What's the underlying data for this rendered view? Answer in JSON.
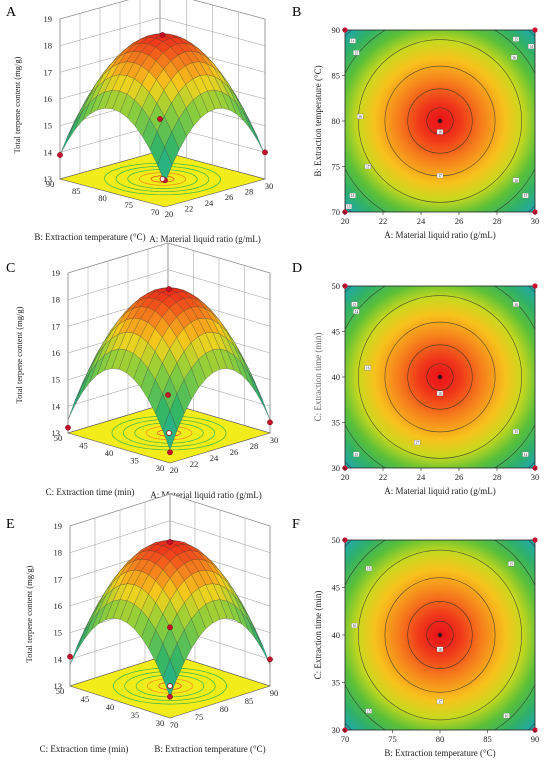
{
  "colors": {
    "surface_low": "#1aa8c8",
    "surface_mid": "#2fb56a",
    "surface_high": "#f5d21c",
    "surface_peak": "#ef2a1a",
    "floor": "#f2ec1a",
    "design_point": "#c8102e",
    "grid": "#555555"
  },
  "chart_data": [
    {
      "panel": "A",
      "type": "surface3d",
      "xlabel": "A: Material liquid ratio  (g/mL)",
      "ylabel": "B: Extraction temperature  (°C)",
      "zlabel": "Total terpene content    (mg/g)",
      "x_ticks": [
        "20",
        "22",
        "24",
        "26",
        "28",
        "30"
      ],
      "y_ticks": [
        "70",
        "75",
        "80",
        "85",
        "90"
      ],
      "z_ticks": [
        "13",
        "14",
        "15",
        "16",
        "17",
        "18",
        "19"
      ],
      "xlim": [
        20,
        30
      ],
      "ylim": [
        70,
        90
      ],
      "zlim": [
        13,
        19
      ],
      "x_opt": 25,
      "y_opt": 80,
      "z_max": 18.4,
      "z_corner": 13.9,
      "design_points": [
        [
          25,
          80,
          18.4
        ],
        [
          20,
          70,
          14.0
        ],
        [
          30,
          90,
          14.2
        ],
        [
          20,
          90,
          13.9
        ],
        [
          30,
          70,
          14.0
        ]
      ]
    },
    {
      "panel": "B",
      "type": "contour",
      "xlabel": "A: Material liquid ratio  (g/mL)",
      "ylabel": "B: Extraction temperature  (°C)",
      "x_ticks": [
        "20",
        "22",
        "24",
        "26",
        "28",
        "30"
      ],
      "y_ticks": [
        "70",
        "75",
        "80",
        "85",
        "90"
      ],
      "xlim": [
        20,
        30
      ],
      "ylim": [
        70,
        90
      ],
      "center": [
        25,
        80
      ],
      "contour_labels": [
        {
          "text": "14",
          "x": 20.4,
          "y": 88.8
        },
        {
          "text": "15",
          "x": 20.6,
          "y": 87.5
        },
        {
          "text": "16",
          "x": 20.8,
          "y": 80.5
        },
        {
          "text": "17",
          "x": 21.2,
          "y": 75.0
        },
        {
          "text": "14",
          "x": 20.4,
          "y": 71.8
        },
        {
          "text": "13",
          "x": 20.2,
          "y": 70.6
        },
        {
          "text": "18",
          "x": 25.0,
          "y": 78.8
        },
        {
          "text": "17",
          "x": 25.0,
          "y": 74.0
        },
        {
          "text": "15",
          "x": 29.0,
          "y": 89.0
        },
        {
          "text": "16",
          "x": 28.9,
          "y": 87.0
        },
        {
          "text": "14",
          "x": 29.8,
          "y": 88.2
        },
        {
          "text": "16",
          "x": 29.0,
          "y": 73.5
        },
        {
          "text": "15",
          "x": 29.5,
          "y": 71.8
        }
      ]
    },
    {
      "panel": "C",
      "type": "surface3d",
      "xlabel": "A: Material liquid ratio  (g/mL)",
      "ylabel": "C: Extraction time (min)",
      "zlabel": "Total terpene content    (mg/g)",
      "x_ticks": [
        "20",
        "22",
        "24",
        "26",
        "28",
        "30"
      ],
      "y_ticks": [
        "30",
        "35",
        "40",
        "45",
        "50"
      ],
      "z_ticks": [
        "13",
        "14",
        "15",
        "16",
        "17",
        "18",
        "19"
      ],
      "xlim": [
        20,
        30
      ],
      "ylim": [
        30,
        50
      ],
      "zlim": [
        13,
        19
      ],
      "x_opt": 25,
      "y_opt": 40,
      "z_max": 18.4,
      "z_corner": 13.5,
      "design_points": [
        [
          25,
          40,
          18.4
        ],
        [
          20,
          50,
          13.2
        ],
        [
          30,
          30,
          13.4
        ],
        [
          20,
          30,
          13.4
        ],
        [
          30,
          50,
          13.3
        ]
      ]
    },
    {
      "panel": "D",
      "type": "contour",
      "xlabel": "A: Material liquid ratio  (g/mL)",
      "ylabel": "C: Extraction time (min)",
      "x_ticks": [
        "20",
        "22",
        "24",
        "26",
        "28",
        "30"
      ],
      "y_ticks": [
        "30",
        "35",
        "40",
        "45",
        "50"
      ],
      "xlim": [
        20,
        30
      ],
      "ylim": [
        30,
        50
      ],
      "center": [
        25,
        40
      ],
      "contour_labels": [
        {
          "text": "13",
          "x": 20.5,
          "y": 48.0
        },
        {
          "text": "14",
          "x": 20.6,
          "y": 47.2
        },
        {
          "text": "16",
          "x": 21.2,
          "y": 41.0
        },
        {
          "text": "15",
          "x": 20.6,
          "y": 31.5
        },
        {
          "text": "17",
          "x": 23.8,
          "y": 32.8
        },
        {
          "text": "18",
          "x": 25.0,
          "y": 38.2
        },
        {
          "text": "16",
          "x": 29.0,
          "y": 48.0
        },
        {
          "text": "15",
          "x": 29.0,
          "y": 34.0
        },
        {
          "text": "14",
          "x": 29.5,
          "y": 31.5
        }
      ]
    },
    {
      "panel": "E",
      "type": "surface3d",
      "xlabel": "B: Extraction temperature  (°C)",
      "ylabel": "C: Extraction time (min)",
      "zlabel": "Total terpene content (mg/g)",
      "x_ticks": [
        "70",
        "75",
        "80",
        "85",
        "90"
      ],
      "y_ticks": [
        "30",
        "35",
        "40",
        "45",
        "50"
      ],
      "z_ticks": [
        "13",
        "14",
        "15",
        "16",
        "17",
        "18",
        "19"
      ],
      "xlim": [
        70,
        90
      ],
      "ylim": [
        30,
        50
      ],
      "zlim": [
        13,
        19
      ],
      "x_opt": 80,
      "y_opt": 40,
      "z_max": 18.4,
      "z_corner": 13.8,
      "design_points": [
        [
          80,
          40,
          18.4
        ],
        [
          70,
          50,
          14.1
        ],
        [
          90,
          30,
          14.0
        ],
        [
          70,
          30,
          13.8
        ],
        [
          90,
          50,
          14.0
        ]
      ]
    },
    {
      "panel": "F",
      "type": "contour",
      "xlabel": "B: Extraction temperature  (°C)",
      "ylabel": "C: Extraction time (min)",
      "x_ticks": [
        "70",
        "75",
        "80",
        "85",
        "90"
      ],
      "y_ticks": [
        "30",
        "35",
        "40",
        "45",
        "50"
      ],
      "xlim": [
        70,
        90
      ],
      "ylim": [
        30,
        50
      ],
      "center": [
        80,
        40
      ],
      "contour_labels": [
        {
          "text": "15",
          "x": 72.5,
          "y": 47.0
        },
        {
          "text": "16",
          "x": 71.0,
          "y": 41.0
        },
        {
          "text": "15",
          "x": 72.5,
          "y": 32.0
        },
        {
          "text": "18",
          "x": 80.0,
          "y": 38.5
        },
        {
          "text": "17",
          "x": 80.0,
          "y": 33.0
        },
        {
          "text": "15",
          "x": 87.5,
          "y": 47.5
        },
        {
          "text": "16",
          "x": 87.0,
          "y": 31.5
        }
      ]
    }
  ]
}
